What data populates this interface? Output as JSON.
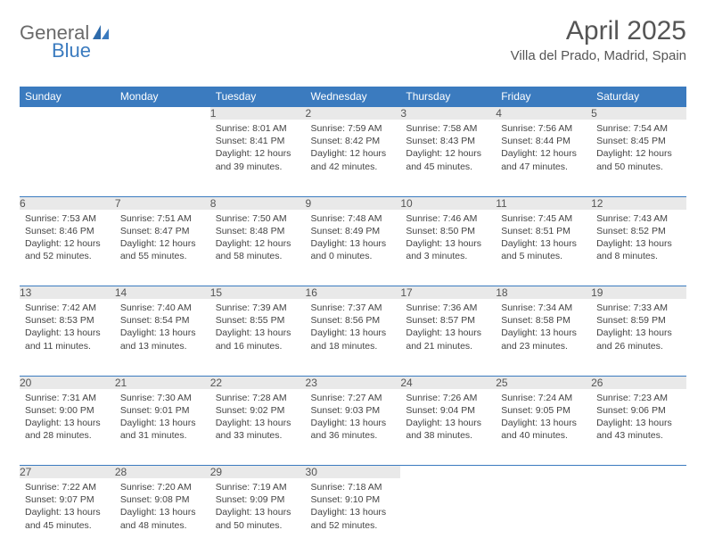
{
  "logo": {
    "text1": "General",
    "text2": "Blue"
  },
  "title": "April 2025",
  "location": "Villa del Prado, Madrid, Spain",
  "colors": {
    "header_bg": "#3b7bbf",
    "daynum_bg": "#e9e9e9",
    "row_border": "#3b7bbf",
    "text": "#444444",
    "title_text": "#555555"
  },
  "weekdays": [
    "Sunday",
    "Monday",
    "Tuesday",
    "Wednesday",
    "Thursday",
    "Friday",
    "Saturday"
  ],
  "weeks": [
    [
      null,
      null,
      {
        "n": "1",
        "sr": "Sunrise: 8:01 AM",
        "ss": "Sunset: 8:41 PM",
        "dl": "Daylight: 12 hours and 39 minutes."
      },
      {
        "n": "2",
        "sr": "Sunrise: 7:59 AM",
        "ss": "Sunset: 8:42 PM",
        "dl": "Daylight: 12 hours and 42 minutes."
      },
      {
        "n": "3",
        "sr": "Sunrise: 7:58 AM",
        "ss": "Sunset: 8:43 PM",
        "dl": "Daylight: 12 hours and 45 minutes."
      },
      {
        "n": "4",
        "sr": "Sunrise: 7:56 AM",
        "ss": "Sunset: 8:44 PM",
        "dl": "Daylight: 12 hours and 47 minutes."
      },
      {
        "n": "5",
        "sr": "Sunrise: 7:54 AM",
        "ss": "Sunset: 8:45 PM",
        "dl": "Daylight: 12 hours and 50 minutes."
      }
    ],
    [
      {
        "n": "6",
        "sr": "Sunrise: 7:53 AM",
        "ss": "Sunset: 8:46 PM",
        "dl": "Daylight: 12 hours and 52 minutes."
      },
      {
        "n": "7",
        "sr": "Sunrise: 7:51 AM",
        "ss": "Sunset: 8:47 PM",
        "dl": "Daylight: 12 hours and 55 minutes."
      },
      {
        "n": "8",
        "sr": "Sunrise: 7:50 AM",
        "ss": "Sunset: 8:48 PM",
        "dl": "Daylight: 12 hours and 58 minutes."
      },
      {
        "n": "9",
        "sr": "Sunrise: 7:48 AM",
        "ss": "Sunset: 8:49 PM",
        "dl": "Daylight: 13 hours and 0 minutes."
      },
      {
        "n": "10",
        "sr": "Sunrise: 7:46 AM",
        "ss": "Sunset: 8:50 PM",
        "dl": "Daylight: 13 hours and 3 minutes."
      },
      {
        "n": "11",
        "sr": "Sunrise: 7:45 AM",
        "ss": "Sunset: 8:51 PM",
        "dl": "Daylight: 13 hours and 5 minutes."
      },
      {
        "n": "12",
        "sr": "Sunrise: 7:43 AM",
        "ss": "Sunset: 8:52 PM",
        "dl": "Daylight: 13 hours and 8 minutes."
      }
    ],
    [
      {
        "n": "13",
        "sr": "Sunrise: 7:42 AM",
        "ss": "Sunset: 8:53 PM",
        "dl": "Daylight: 13 hours and 11 minutes."
      },
      {
        "n": "14",
        "sr": "Sunrise: 7:40 AM",
        "ss": "Sunset: 8:54 PM",
        "dl": "Daylight: 13 hours and 13 minutes."
      },
      {
        "n": "15",
        "sr": "Sunrise: 7:39 AM",
        "ss": "Sunset: 8:55 PM",
        "dl": "Daylight: 13 hours and 16 minutes."
      },
      {
        "n": "16",
        "sr": "Sunrise: 7:37 AM",
        "ss": "Sunset: 8:56 PM",
        "dl": "Daylight: 13 hours and 18 minutes."
      },
      {
        "n": "17",
        "sr": "Sunrise: 7:36 AM",
        "ss": "Sunset: 8:57 PM",
        "dl": "Daylight: 13 hours and 21 minutes."
      },
      {
        "n": "18",
        "sr": "Sunrise: 7:34 AM",
        "ss": "Sunset: 8:58 PM",
        "dl": "Daylight: 13 hours and 23 minutes."
      },
      {
        "n": "19",
        "sr": "Sunrise: 7:33 AM",
        "ss": "Sunset: 8:59 PM",
        "dl": "Daylight: 13 hours and 26 minutes."
      }
    ],
    [
      {
        "n": "20",
        "sr": "Sunrise: 7:31 AM",
        "ss": "Sunset: 9:00 PM",
        "dl": "Daylight: 13 hours and 28 minutes."
      },
      {
        "n": "21",
        "sr": "Sunrise: 7:30 AM",
        "ss": "Sunset: 9:01 PM",
        "dl": "Daylight: 13 hours and 31 minutes."
      },
      {
        "n": "22",
        "sr": "Sunrise: 7:28 AM",
        "ss": "Sunset: 9:02 PM",
        "dl": "Daylight: 13 hours and 33 minutes."
      },
      {
        "n": "23",
        "sr": "Sunrise: 7:27 AM",
        "ss": "Sunset: 9:03 PM",
        "dl": "Daylight: 13 hours and 36 minutes."
      },
      {
        "n": "24",
        "sr": "Sunrise: 7:26 AM",
        "ss": "Sunset: 9:04 PM",
        "dl": "Daylight: 13 hours and 38 minutes."
      },
      {
        "n": "25",
        "sr": "Sunrise: 7:24 AM",
        "ss": "Sunset: 9:05 PM",
        "dl": "Daylight: 13 hours and 40 minutes."
      },
      {
        "n": "26",
        "sr": "Sunrise: 7:23 AM",
        "ss": "Sunset: 9:06 PM",
        "dl": "Daylight: 13 hours and 43 minutes."
      }
    ],
    [
      {
        "n": "27",
        "sr": "Sunrise: 7:22 AM",
        "ss": "Sunset: 9:07 PM",
        "dl": "Daylight: 13 hours and 45 minutes."
      },
      {
        "n": "28",
        "sr": "Sunrise: 7:20 AM",
        "ss": "Sunset: 9:08 PM",
        "dl": "Daylight: 13 hours and 48 minutes."
      },
      {
        "n": "29",
        "sr": "Sunrise: 7:19 AM",
        "ss": "Sunset: 9:09 PM",
        "dl": "Daylight: 13 hours and 50 minutes."
      },
      {
        "n": "30",
        "sr": "Sunrise: 7:18 AM",
        "ss": "Sunset: 9:10 PM",
        "dl": "Daylight: 13 hours and 52 minutes."
      },
      null,
      null,
      null
    ]
  ]
}
